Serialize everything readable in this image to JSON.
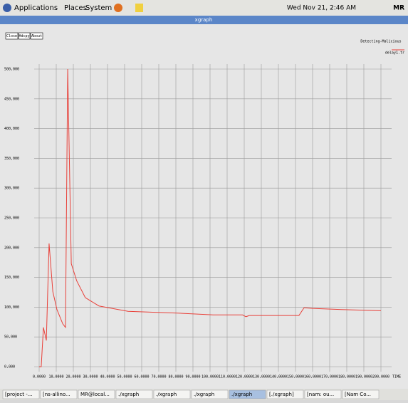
{
  "top_panel": {
    "menus": [
      "Applications",
      "Places",
      "System"
    ],
    "clock": "Wed Nov 21,  2:46 AM",
    "user": "MR"
  },
  "window": {
    "title": "xgraph",
    "buttons": [
      "Close",
      "Hdcpy",
      "About"
    ],
    "heading": "Detecting-Malicious"
  },
  "chart_data": {
    "type": "line",
    "x_label": "TIME",
    "x": [
      0,
      1.2,
      2.5,
      4.2,
      5.8,
      8,
      10.4,
      13.8,
      15.4,
      16.7,
      18.8,
      22,
      27,
      35,
      52,
      81,
      102,
      119,
      121,
      123,
      152,
      155,
      160,
      177,
      200
    ],
    "series": [
      {
        "name": "delay1.tr",
        "color": "#e8413a",
        "values": [
          0,
          0,
          66,
          44,
          207,
          126,
          96,
          72,
          66,
          500,
          173,
          144,
          116,
          102,
          93,
          90,
          87,
          87,
          84,
          86,
          86,
          99,
          98,
          96,
          94
        ]
      }
    ],
    "xlim": [
      0,
      200
    ],
    "ylim": [
      0,
      500
    ],
    "grid": true,
    "xticks": [
      {
        "value": 0,
        "label": "0,0000"
      },
      {
        "value": 10,
        "label": "10,0000"
      },
      {
        "value": 20,
        "label": "20,0000"
      },
      {
        "value": 30,
        "label": "30,0000"
      },
      {
        "value": 40,
        "label": "40,0000"
      },
      {
        "value": 50,
        "label": "50,0000"
      },
      {
        "value": 60,
        "label": "60,0000"
      },
      {
        "value": 70,
        "label": "70,0000"
      },
      {
        "value": 80,
        "label": "80,0000"
      },
      {
        "value": 90,
        "label": "90,0000"
      },
      {
        "value": 100,
        "label": "100,0000"
      },
      {
        "value": 110,
        "label": "110,0000"
      },
      {
        "value": 120,
        "label": "120,0000"
      },
      {
        "value": 130,
        "label": "130,0000"
      },
      {
        "value": 140,
        "label": "140,0000"
      },
      {
        "value": 150,
        "label": "150,0000"
      },
      {
        "value": 160,
        "label": "160,0000"
      },
      {
        "value": 170,
        "label": "170,0000"
      },
      {
        "value": 180,
        "label": "180,0000"
      },
      {
        "value": 190,
        "label": "190,0000"
      },
      {
        "value": 200,
        "label": "200,0000"
      }
    ],
    "yticks": [
      {
        "value": 0,
        "label": "0,000"
      },
      {
        "value": 50,
        "label": "50,000"
      },
      {
        "value": 100,
        "label": "100,000"
      },
      {
        "value": 150,
        "label": "150,000"
      },
      {
        "value": 200,
        "label": "200,000"
      },
      {
        "value": 250,
        "label": "250,000"
      },
      {
        "value": 300,
        "label": "300,000"
      },
      {
        "value": 350,
        "label": "350,000"
      },
      {
        "value": 400,
        "label": "400,000"
      },
      {
        "value": 450,
        "label": "450,000"
      },
      {
        "value": 500,
        "label": "500,000"
      }
    ]
  },
  "taskbar": [
    "[project -...",
    "[ns-allino...",
    "MR@local...",
    "./xgraph",
    "./xgraph",
    "./xgraph",
    "./xgraph",
    "[./xgraph]",
    "[nam: ou...",
    "[Nam Co..."
  ]
}
